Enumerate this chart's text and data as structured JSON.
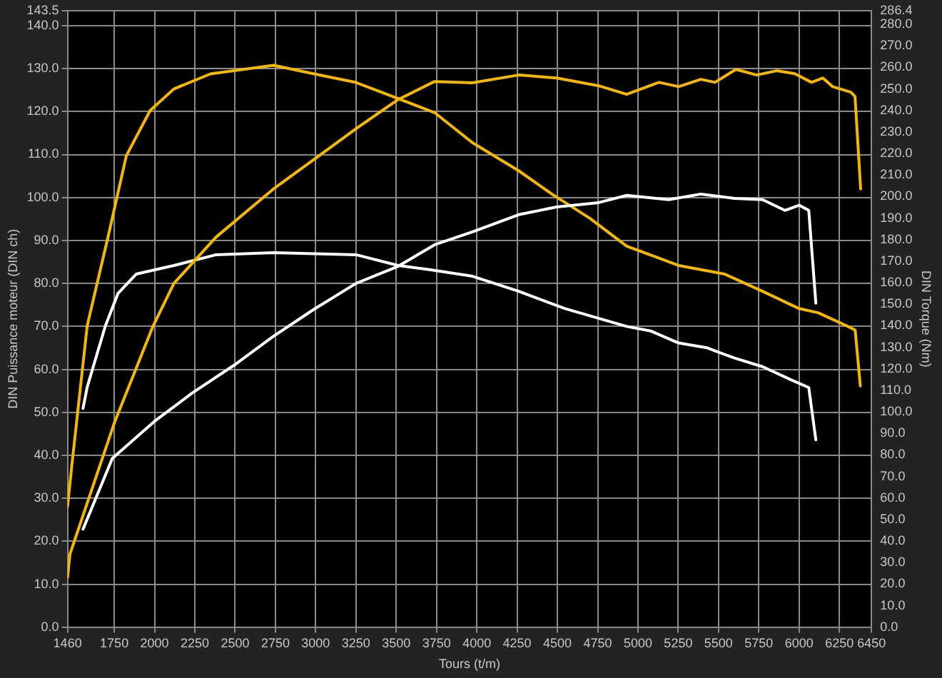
{
  "chart_data": {
    "type": "line",
    "xlabel": "Tours (t/m)",
    "ylabel": "DIN Puissance moteur (DIN ch)",
    "y2label": "DIN Torque (Nm)",
    "xlim": [
      1460,
      6450
    ],
    "xticks": [
      1460,
      1750,
      2000,
      2250,
      2500,
      2750,
      3000,
      3250,
      3500,
      3750,
      4000,
      4250,
      4500,
      4750,
      5000,
      5250,
      5500,
      5750,
      6000,
      6250,
      6450
    ],
    "ylim": [
      0,
      143.5
    ],
    "yticks": [
      {
        "value": 0,
        "label": "0.0"
      },
      {
        "value": 10,
        "label": "10.0"
      },
      {
        "value": 20,
        "label": "20.0"
      },
      {
        "value": 30,
        "label": "30.0"
      },
      {
        "value": 40,
        "label": "40.0"
      },
      {
        "value": 50,
        "label": "50.0"
      },
      {
        "value": 60,
        "label": "60.0"
      },
      {
        "value": 70,
        "label": "70.0"
      },
      {
        "value": 80,
        "label": "80.0"
      },
      {
        "value": 90,
        "label": "90.0"
      },
      {
        "value": 100,
        "label": "100.0"
      },
      {
        "value": 110,
        "label": "110.0"
      },
      {
        "value": 120,
        "label": "120.0"
      },
      {
        "value": 130,
        "label": "130.0"
      },
      {
        "value": 140,
        "label": "140.0"
      },
      143.5
    ],
    "y2lim": [
      0,
      286.4
    ],
    "y2ticks": [
      {
        "value": 0,
        "label": "0.0"
      },
      {
        "value": 10,
        "label": "10.0"
      },
      {
        "value": 20,
        "label": "20.0"
      },
      {
        "value": 30,
        "label": "30.0"
      },
      {
        "value": 40,
        "label": "40.0"
      },
      {
        "value": 50,
        "label": "50.0"
      },
      {
        "value": 60,
        "label": "60.0"
      },
      {
        "value": 70,
        "label": "70.0"
      },
      {
        "value": 80,
        "label": "80.0"
      },
      {
        "value": 90,
        "label": "90.0"
      },
      {
        "value": 100,
        "label": "100.0"
      },
      {
        "value": 110,
        "label": "110.0"
      },
      {
        "value": 120,
        "label": "120.0"
      },
      {
        "value": 130,
        "label": "130.0"
      },
      {
        "value": 140,
        "label": "140.0"
      },
      {
        "value": 150,
        "label": "150.0"
      },
      {
        "value": 160,
        "label": "160.0"
      },
      {
        "value": 170,
        "label": "170.0"
      },
      {
        "value": 180,
        "label": "180.0"
      },
      {
        "value": 190,
        "label": "190.0"
      },
      {
        "value": 200,
        "label": "200.0"
      },
      {
        "value": 210,
        "label": "210.0"
      },
      {
        "value": 220,
        "label": "220.0"
      },
      {
        "value": 230,
        "label": "230.0"
      },
      {
        "value": 240,
        "label": "240.0"
      },
      {
        "value": 250,
        "label": "250.0"
      },
      {
        "value": 260,
        "label": "260.0"
      },
      {
        "value": 270,
        "label": "270.0"
      },
      {
        "value": 280,
        "label": "280.0"
      },
      286.4
    ],
    "grid": true,
    "legend": false,
    "marker": "none",
    "line_style": "solid",
    "series": [
      {
        "color": "#f5b800",
        "x": [
          1460,
          1475,
          1750,
          1990,
          2120,
          2382,
          2738,
          3017,
          3250,
          3512,
          3738,
          3973,
          4260,
          4495,
          4756,
          4930,
          5130,
          5252,
          5391,
          5478,
          5608,
          5738,
          5860,
          5973,
          6077,
          6147,
          6208,
          6321,
          6347,
          6382
        ],
        "values": [
          11.6,
          17,
          47.5,
          70,
          80,
          90.8,
          102,
          109.6,
          116,
          122.8,
          127,
          126.7,
          128.5,
          127.8,
          126,
          124,
          126.8,
          125.8,
          127.5,
          126.8,
          129.8,
          128.5,
          129.5,
          128.8,
          126.8,
          127.8,
          125.8,
          124.5,
          123.5,
          102
        ]
      },
      {
        "color": "#ffffff",
        "x": [
          1556,
          1738,
          1999,
          2234,
          2495,
          2738,
          2990,
          3250,
          3512,
          3738,
          3973,
          4260,
          4495,
          4756,
          4930,
          5191,
          5391,
          5599,
          5773,
          5912,
          6000,
          6060,
          6104
        ],
        "values": [
          22.8,
          39.3,
          47.9,
          54.5,
          61,
          67.7,
          74,
          80,
          84,
          89,
          92,
          96,
          97.8,
          98.8,
          100.5,
          99.5,
          100.8,
          99.8,
          99.5,
          97,
          98.2,
          97,
          75.4
        ]
      },
      {
        "color": "#f5b800",
        "axis": "y2",
        "x": [
          1460,
          1485,
          1582,
          1712,
          1825,
          1973,
          2120,
          2347,
          2738,
          2990,
          3250,
          3512,
          3738,
          3973,
          4260,
          4469,
          4700,
          4930,
          5252,
          5538,
          5773,
          6000,
          6120,
          6295,
          6348,
          6380
        ],
        "values": [
          56,
          74,
          140,
          181.5,
          219,
          240,
          250,
          257,
          261,
          257,
          253,
          245.5,
          239,
          225,
          212,
          201,
          190,
          177,
          168,
          164,
          156,
          148,
          146,
          140,
          138,
          112
        ]
      },
      {
        "color": "#ffffff",
        "axis": "y2",
        "x": [
          1556,
          1582,
          1695,
          1773,
          1886,
          2120,
          2382,
          2738,
          3250,
          3512,
          3712,
          3973,
          4260,
          4547,
          4930,
          5078,
          5252,
          5426,
          5599,
          5773,
          5947,
          6060,
          6104
        ],
        "values": [
          101.6,
          111.5,
          140,
          155,
          164,
          168,
          173,
          174,
          173,
          168,
          166,
          163,
          156,
          148,
          139.7,
          137.6,
          132,
          129.8,
          125,
          121,
          115,
          111.3,
          87
        ]
      }
    ]
  }
}
